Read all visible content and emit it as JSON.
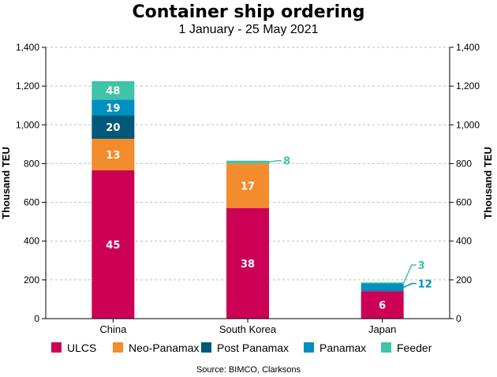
{
  "chart_data": {
    "type": "bar",
    "stacked": true,
    "title": "Container ship ordering",
    "subtitle": "1 January - 25 May 2021",
    "ylabel_left": "Thousand TEU",
    "ylabel_right": "Thousand TEU",
    "ylim": [
      0,
      1400
    ],
    "yticks": [
      "0",
      "200",
      "400",
      "600",
      "800",
      "1,000",
      "1,200",
      "1,400"
    ],
    "grid": true,
    "legend_position": "bottom",
    "categories": [
      "China",
      "South Korea",
      "Japan"
    ],
    "series": [
      {
        "name": "ULCS",
        "color": "#cc0055",
        "values": [
          766,
          571,
          142
        ],
        "labels": [
          "45",
          "38",
          "6"
        ]
      },
      {
        "name": "Neo-Panamax",
        "color": "#f28c2d",
        "values": [
          162,
          230,
          0
        ],
        "labels": [
          "13",
          "17",
          ""
        ]
      },
      {
        "name": "Post Panamax",
        "color": "#00587a",
        "values": [
          120,
          0,
          0
        ],
        "labels": [
          "20",
          "",
          ""
        ]
      },
      {
        "name": "Panamax",
        "color": "#0090c0",
        "values": [
          82,
          0,
          39
        ],
        "labels": [
          "19",
          "",
          "12"
        ]
      },
      {
        "name": "Feeder",
        "color": "#3fc3a9",
        "values": [
          95,
          14,
          6
        ],
        "labels": [
          "48",
          "8",
          "3"
        ]
      }
    ],
    "source": "Source: BIMCO, Clarksons"
  }
}
